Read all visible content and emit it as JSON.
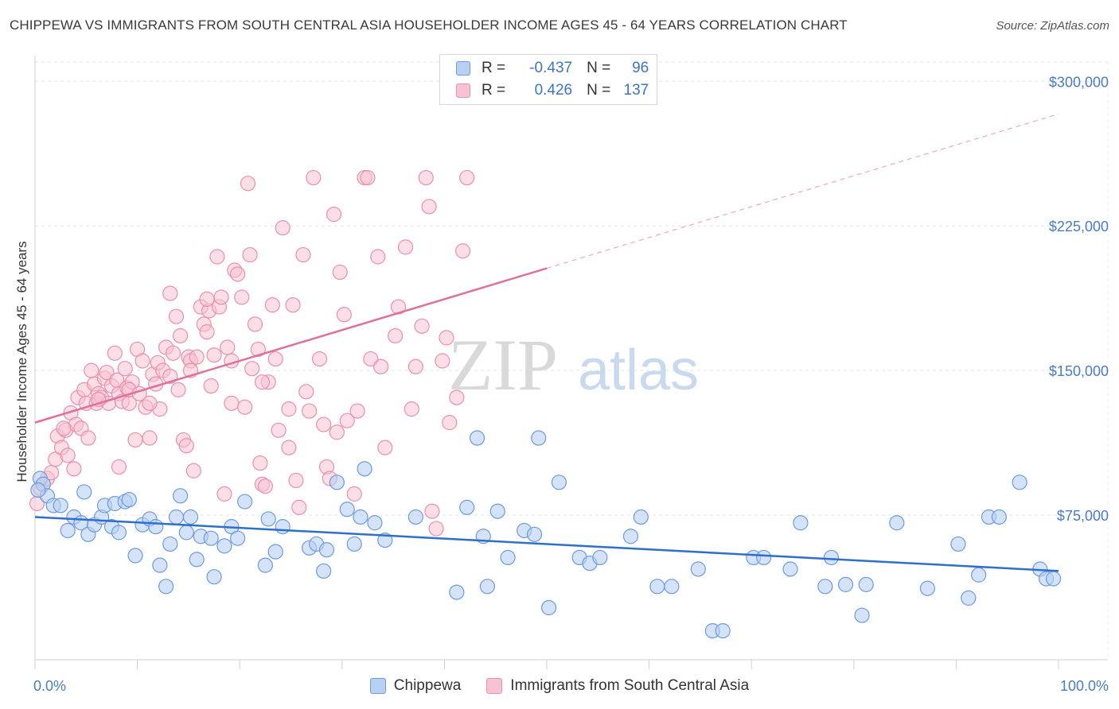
{
  "header": {
    "title": "CHIPPEWA VS IMMIGRANTS FROM SOUTH CENTRAL ASIA HOUSEHOLDER INCOME AGES 45 - 64 YEARS CORRELATION CHART",
    "source": "Source: ZipAtlas.com"
  },
  "watermark": {
    "zip": "ZIP",
    "atlas": "atlas"
  },
  "legend": {
    "r_label": "R =",
    "n_label": "N =",
    "chippewa": {
      "r": "-0.437",
      "n": "96"
    },
    "immigrants": {
      "r": "0.426",
      "n": "137"
    }
  },
  "colors": {
    "chippewa_fill": "#b8d0f2",
    "chippewa_stroke": "#6b9be0",
    "chippewa_line": "#2f6fcc",
    "immigrants_fill": "#f7c2d2",
    "immigrants_stroke": "#eb8fad",
    "immigrants_line": "#e0709a",
    "axis_text": "#4a7cc4"
  },
  "chart_data": {
    "type": "scatter",
    "xlabel": "",
    "ylabel": "Householder Income Ages 45 - 64 years",
    "xlim": [
      0,
      100
    ],
    "ylim": [
      0,
      310000
    ],
    "x_tick_labels": [
      "0.0%",
      "100.0%"
    ],
    "y_ticks": [
      75000,
      150000,
      225000,
      300000
    ],
    "y_tick_labels": [
      "$75,000",
      "$150,000",
      "$225,000",
      "$300,000"
    ],
    "grid": true,
    "legend_position": "top-center",
    "series": [
      {
        "name": "Chippewa",
        "trend": {
          "x": [
            0,
            100
          ],
          "y": [
            74000,
            46000
          ]
        },
        "points": [
          [
            0.5,
            94000
          ],
          [
            0.8,
            91000
          ],
          [
            1.2,
            85000
          ],
          [
            1.8,
            80000
          ],
          [
            2.5,
            80000
          ],
          [
            3.2,
            67000
          ],
          [
            3.8,
            74000
          ],
          [
            4.5,
            71000
          ],
          [
            4.8,
            87000
          ],
          [
            5.2,
            65000
          ],
          [
            5.8,
            70000
          ],
          [
            6.5,
            74000
          ],
          [
            6.8,
            80000
          ],
          [
            7.5,
            69000
          ],
          [
            7.8,
            81000
          ],
          [
            8.2,
            66000
          ],
          [
            8.8,
            82000
          ],
          [
            9.2,
            83000
          ],
          [
            9.8,
            54000
          ],
          [
            10.5,
            70000
          ],
          [
            11.2,
            73000
          ],
          [
            11.8,
            69000
          ],
          [
            12.2,
            49000
          ],
          [
            12.8,
            38000
          ],
          [
            13.2,
            60000
          ],
          [
            13.8,
            74000
          ],
          [
            14.2,
            85000
          ],
          [
            14.8,
            66000
          ],
          [
            15.2,
            74000
          ],
          [
            15.8,
            52000
          ],
          [
            16.2,
            64000
          ],
          [
            17.2,
            63000
          ],
          [
            17.5,
            43000
          ],
          [
            18.5,
            59000
          ],
          [
            19.2,
            69000
          ],
          [
            19.8,
            63000
          ],
          [
            20.5,
            82000
          ],
          [
            22.5,
            49000
          ],
          [
            22.8,
            73000
          ],
          [
            23.5,
            56000
          ],
          [
            24.2,
            69000
          ],
          [
            26.8,
            58000
          ],
          [
            27.5,
            60000
          ],
          [
            28.2,
            46000
          ],
          [
            28.5,
            57000
          ],
          [
            29.5,
            92000
          ],
          [
            30.5,
            78000
          ],
          [
            31.2,
            60000
          ],
          [
            31.8,
            74000
          ],
          [
            32.2,
            99000
          ],
          [
            33.2,
            71000
          ],
          [
            34.2,
            62000
          ],
          [
            37.2,
            74000
          ],
          [
            41.2,
            35000
          ],
          [
            42.2,
            79000
          ],
          [
            43.2,
            115000
          ],
          [
            43.8,
            64000
          ],
          [
            44.2,
            38000
          ],
          [
            45.2,
            77000
          ],
          [
            46.2,
            53000
          ],
          [
            47.8,
            67000
          ],
          [
            48.8,
            65000
          ],
          [
            49.2,
            115000
          ],
          [
            50.2,
            27000
          ],
          [
            51.2,
            92000
          ],
          [
            53.2,
            53000
          ],
          [
            54.2,
            50000
          ],
          [
            55.2,
            53000
          ],
          [
            58.2,
            64000
          ],
          [
            59.2,
            74000
          ],
          [
            60.8,
            38000
          ],
          [
            62.2,
            38000
          ],
          [
            64.8,
            47000
          ],
          [
            66.2,
            15000
          ],
          [
            67.2,
            15000
          ],
          [
            70.2,
            53000
          ],
          [
            71.2,
            53000
          ],
          [
            73.8,
            47000
          ],
          [
            74.8,
            71000
          ],
          [
            77.2,
            38000
          ],
          [
            77.8,
            53000
          ],
          [
            79.2,
            39000
          ],
          [
            80.8,
            23000
          ],
          [
            81.2,
            39000
          ],
          [
            84.2,
            71000
          ],
          [
            87.2,
            37000
          ],
          [
            90.2,
            60000
          ],
          [
            91.2,
            32000
          ],
          [
            92.2,
            44000
          ],
          [
            93.2,
            74000
          ],
          [
            94.2,
            74000
          ],
          [
            96.2,
            92000
          ],
          [
            98.2,
            47000
          ],
          [
            98.8,
            42000
          ],
          [
            99.5,
            42000
          ],
          [
            0.3,
            88000
          ]
        ]
      },
      {
        "name": "Immigrants from South Central Asia",
        "trend": {
          "x": [
            0,
            50
          ],
          "y": [
            123000,
            203000
          ]
        },
        "trend_ext": {
          "x": [
            50,
            100
          ],
          "y": [
            203000,
            283000
          ]
        },
        "points": [
          [
            0.2,
            81000
          ],
          [
            0.5,
            89000
          ],
          [
            0.8,
            91000
          ],
          [
            1.2,
            94000
          ],
          [
            1.6,
            97000
          ],
          [
            2.0,
            104000
          ],
          [
            2.2,
            116000
          ],
          [
            2.6,
            110000
          ],
          [
            3.0,
            119000
          ],
          [
            3.2,
            106000
          ],
          [
            3.5,
            128000
          ],
          [
            3.8,
            99000
          ],
          [
            4.0,
            122000
          ],
          [
            4.2,
            136000
          ],
          [
            4.5,
            120000
          ],
          [
            4.8,
            140000
          ],
          [
            5.0,
            133000
          ],
          [
            5.2,
            115000
          ],
          [
            5.5,
            150000
          ],
          [
            5.8,
            143000
          ],
          [
            6.0,
            133000
          ],
          [
            6.2,
            138000
          ],
          [
            6.5,
            136000
          ],
          [
            6.8,
            146000
          ],
          [
            7.0,
            149000
          ],
          [
            7.2,
            133000
          ],
          [
            7.5,
            142000
          ],
          [
            7.8,
            159000
          ],
          [
            8.0,
            145000
          ],
          [
            8.2,
            138000
          ],
          [
            8.5,
            134000
          ],
          [
            8.8,
            151000
          ],
          [
            9.0,
            141000
          ],
          [
            9.2,
            133000
          ],
          [
            9.5,
            144000
          ],
          [
            9.8,
            114000
          ],
          [
            10.0,
            161000
          ],
          [
            10.5,
            155000
          ],
          [
            10.8,
            131000
          ],
          [
            11.2,
            115000
          ],
          [
            11.5,
            148000
          ],
          [
            11.8,
            143000
          ],
          [
            12.0,
            154000
          ],
          [
            12.2,
            130000
          ],
          [
            12.5,
            150000
          ],
          [
            12.8,
            162000
          ],
          [
            13.2,
            190000
          ],
          [
            13.5,
            159000
          ],
          [
            13.8,
            178000
          ],
          [
            14.0,
            140000
          ],
          [
            14.2,
            168000
          ],
          [
            14.5,
            114000
          ],
          [
            14.8,
            111000
          ],
          [
            15.0,
            157000
          ],
          [
            15.2,
            155000
          ],
          [
            15.5,
            98000
          ],
          [
            15.8,
            157000
          ],
          [
            16.2,
            183000
          ],
          [
            16.5,
            174000
          ],
          [
            16.8,
            170000
          ],
          [
            17.0,
            181000
          ],
          [
            17.2,
            142000
          ],
          [
            17.5,
            158000
          ],
          [
            17.8,
            209000
          ],
          [
            18.0,
            183000
          ],
          [
            18.2,
            188000
          ],
          [
            18.5,
            86000
          ],
          [
            18.8,
            162000
          ],
          [
            19.2,
            133000
          ],
          [
            19.5,
            202000
          ],
          [
            19.8,
            200000
          ],
          [
            20.2,
            188000
          ],
          [
            20.5,
            131000
          ],
          [
            20.8,
            247000
          ],
          [
            21.0,
            210000
          ],
          [
            21.2,
            151000
          ],
          [
            21.5,
            174000
          ],
          [
            21.8,
            161000
          ],
          [
            22.0,
            102000
          ],
          [
            22.2,
            91000
          ],
          [
            22.5,
            90000
          ],
          [
            22.8,
            144000
          ],
          [
            23.2,
            184000
          ],
          [
            23.5,
            156000
          ],
          [
            23.8,
            119000
          ],
          [
            24.2,
            224000
          ],
          [
            24.8,
            110000
          ],
          [
            25.2,
            184000
          ],
          [
            25.5,
            93000
          ],
          [
            25.8,
            79000
          ],
          [
            26.2,
            210000
          ],
          [
            26.5,
            139000
          ],
          [
            26.8,
            129000
          ],
          [
            27.2,
            250000
          ],
          [
            27.8,
            156000
          ],
          [
            28.2,
            122000
          ],
          [
            28.5,
            100000
          ],
          [
            28.8,
            94000
          ],
          [
            29.2,
            231000
          ],
          [
            29.5,
            118000
          ],
          [
            29.8,
            201000
          ],
          [
            30.2,
            179000
          ],
          [
            30.5,
            124000
          ],
          [
            31.2,
            86000
          ],
          [
            31.5,
            129000
          ],
          [
            32.2,
            250000
          ],
          [
            32.5,
            250000
          ],
          [
            32.8,
            156000
          ],
          [
            33.5,
            209000
          ],
          [
            33.8,
            152000
          ],
          [
            34.2,
            110000
          ],
          [
            35.2,
            168000
          ],
          [
            35.5,
            183000
          ],
          [
            36.2,
            214000
          ],
          [
            36.8,
            130000
          ],
          [
            37.2,
            152000
          ],
          [
            37.8,
            173000
          ],
          [
            38.2,
            250000
          ],
          [
            38.5,
            235000
          ],
          [
            38.8,
            77000
          ],
          [
            39.2,
            68000
          ],
          [
            39.8,
            155000
          ],
          [
            40.2,
            167000
          ],
          [
            40.5,
            123000
          ],
          [
            41.2,
            136000
          ],
          [
            41.8,
            212000
          ],
          [
            42.2,
            250000
          ],
          [
            2.8,
            120000
          ],
          [
            6.2,
            135000
          ],
          [
            8.2,
            100000
          ],
          [
            9.2,
            140000
          ],
          [
            10.2,
            138000
          ],
          [
            11.2,
            133000
          ],
          [
            13.2,
            147000
          ],
          [
            15.2,
            150000
          ],
          [
            16.8,
            187000
          ],
          [
            19.2,
            155000
          ],
          [
            22.2,
            144000
          ],
          [
            24.8,
            130000
          ]
        ]
      }
    ]
  }
}
